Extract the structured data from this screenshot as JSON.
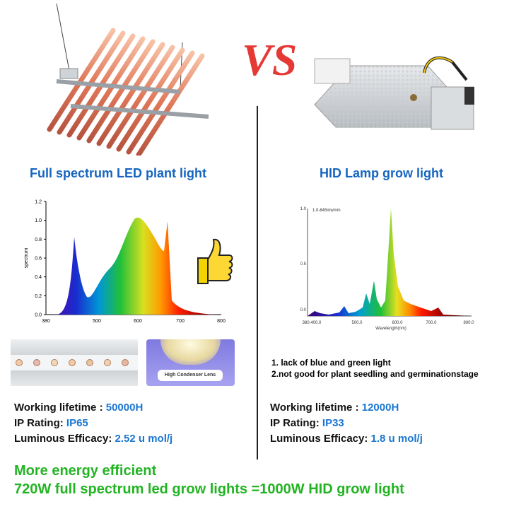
{
  "vs_text": "VS",
  "left": {
    "title": "Full spectrum LED plant light",
    "lens_label": "High Condenser Lens",
    "specs": [
      {
        "label": "Working lifetime : ",
        "value": "50000H"
      },
      {
        "label": "IP Rating: ",
        "value": "IP65"
      },
      {
        "label": "Luminous Efficacy: ",
        "value": "2.52 u mol/j"
      }
    ],
    "chart": {
      "ylabel": "spectrum",
      "xticks": [
        "380",
        "500",
        "600",
        "700",
        "800"
      ],
      "yticks": [
        "0.0",
        "0.2",
        "0.4",
        "0.6",
        "0.8",
        "1.0",
        "1.2"
      ]
    }
  },
  "right": {
    "title": "HID Lamp grow light",
    "notes": [
      "1. lack of blue and green light",
      "2.not good for plant seedling and germinationstage"
    ],
    "specs": [
      {
        "label": "Working lifetime : ",
        "value": "12000H"
      },
      {
        "label": "IP Rating: ",
        "value": "IP33"
      },
      {
        "label": "Luminous Efficacy: ",
        "value": "1.8 u mol/j"
      }
    ],
    "chart": {
      "legend": "1.0-845mw/nm",
      "xlabel": "Wavelength(nm)",
      "xticks": [
        "380.400.0",
        "500.0",
        "600.0",
        "700.0",
        "800.0"
      ],
      "yticks": [
        "0.0",
        "0.5",
        "1.0"
      ]
    }
  },
  "footer": {
    "line1": "More energy efficient",
    "line2": "720W full spectrum led grow lights =1000W HID grow light"
  },
  "colors": {
    "heading_blue": "#1565c0",
    "value_blue": "#1976d2",
    "footer_green": "#22b422",
    "vs_red": "#e53935"
  }
}
